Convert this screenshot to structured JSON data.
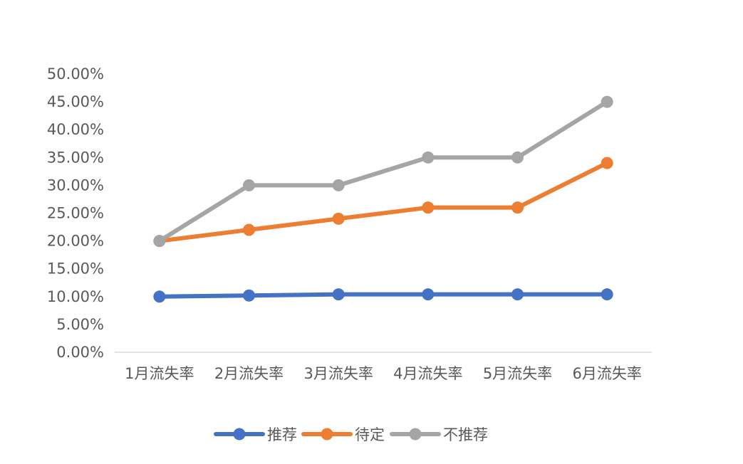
{
  "chart_data": {
    "type": "line",
    "title": "",
    "xlabel": "",
    "ylabel": "",
    "categories": [
      "1月流失率",
      "2月流失率",
      "3月流失率",
      "4月流失率",
      "5月流失率",
      "6月流失率"
    ],
    "series": [
      {
        "name": "推荐",
        "color": "#4472C4",
        "values": [
          0.1,
          0.102,
          0.104,
          0.104,
          0.104,
          0.104
        ]
      },
      {
        "name": "待定",
        "color": "#ED7D31",
        "values": [
          0.2,
          0.22,
          0.24,
          0.26,
          0.26,
          0.34
        ]
      },
      {
        "name": "不推荐",
        "color": "#A5A5A5",
        "values": [
          0.2,
          0.3,
          0.3,
          0.35,
          0.35,
          0.45
        ]
      }
    ],
    "ylim": [
      0,
      0.5
    ],
    "y_ticks": [
      {
        "value": 0.0,
        "label": "0.00%"
      },
      {
        "value": 0.05,
        "label": "5.00%"
      },
      {
        "value": 0.1,
        "label": "10.00%"
      },
      {
        "value": 0.15,
        "label": "15.00%"
      },
      {
        "value": 0.2,
        "label": "20.00%"
      },
      {
        "value": 0.25,
        "label": "25.00%"
      },
      {
        "value": 0.3,
        "label": "30.00%"
      },
      {
        "value": 0.35,
        "label": "35.00%"
      },
      {
        "value": 0.4,
        "label": "40.00%"
      },
      {
        "value": 0.45,
        "label": "45.00%"
      },
      {
        "value": 0.5,
        "label": "50.00%"
      }
    ],
    "grid": false,
    "legend": "bottom",
    "axis_color": "#D9D9D9"
  }
}
